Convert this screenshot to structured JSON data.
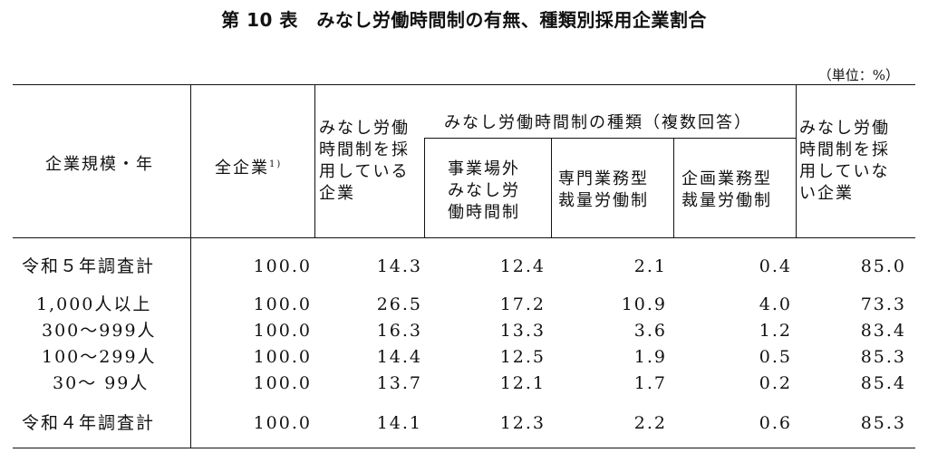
{
  "title": "第 10 表　みなし労働時間制の有無、種類別採用企業割合",
  "unit": "（単位：%）",
  "headers": {
    "row_label": "企業規模・年",
    "all": "全企業",
    "all_note": "1)",
    "adopted": [
      "みなし労働",
      "時間制を採",
      "用している",
      "企業"
    ],
    "types_group": "みなし労働時間制の種類（複数回答）",
    "type_outside": [
      "事業場外",
      "みなし労",
      "働時間制"
    ],
    "type_professional": [
      "専門業務型",
      "裁量労働制"
    ],
    "type_planning": [
      "企画業務型",
      "裁量労働制"
    ],
    "not_adopted": [
      "みなし労働",
      "時間制を採",
      "用していな",
      "い企業"
    ]
  },
  "rows": [
    {
      "label": "令和５年調査計",
      "values": [
        "100.0",
        "14.3",
        "12.4",
        "2.1",
        "0.4",
        "85.0"
      ]
    },
    {
      "label": "1,000人以上",
      "values": [
        "100.0",
        "26.5",
        "17.2",
        "10.9",
        "4.0",
        "73.3"
      ]
    },
    {
      "label": "300～999人",
      "values": [
        "100.0",
        "16.3",
        "13.3",
        "3.6",
        "1.2",
        "83.4"
      ]
    },
    {
      "label": "100～299人",
      "values": [
        "100.0",
        "14.4",
        "12.5",
        "1.9",
        "0.5",
        "85.3"
      ]
    },
    {
      "label": "30～ 99人",
      "values": [
        "100.0",
        "13.7",
        "12.1",
        "1.7",
        "0.2",
        "85.4"
      ]
    },
    {
      "label": "令和４年調査計",
      "values": [
        "100.0",
        "14.1",
        "12.3",
        "2.2",
        "0.6",
        "85.3"
      ]
    }
  ]
}
